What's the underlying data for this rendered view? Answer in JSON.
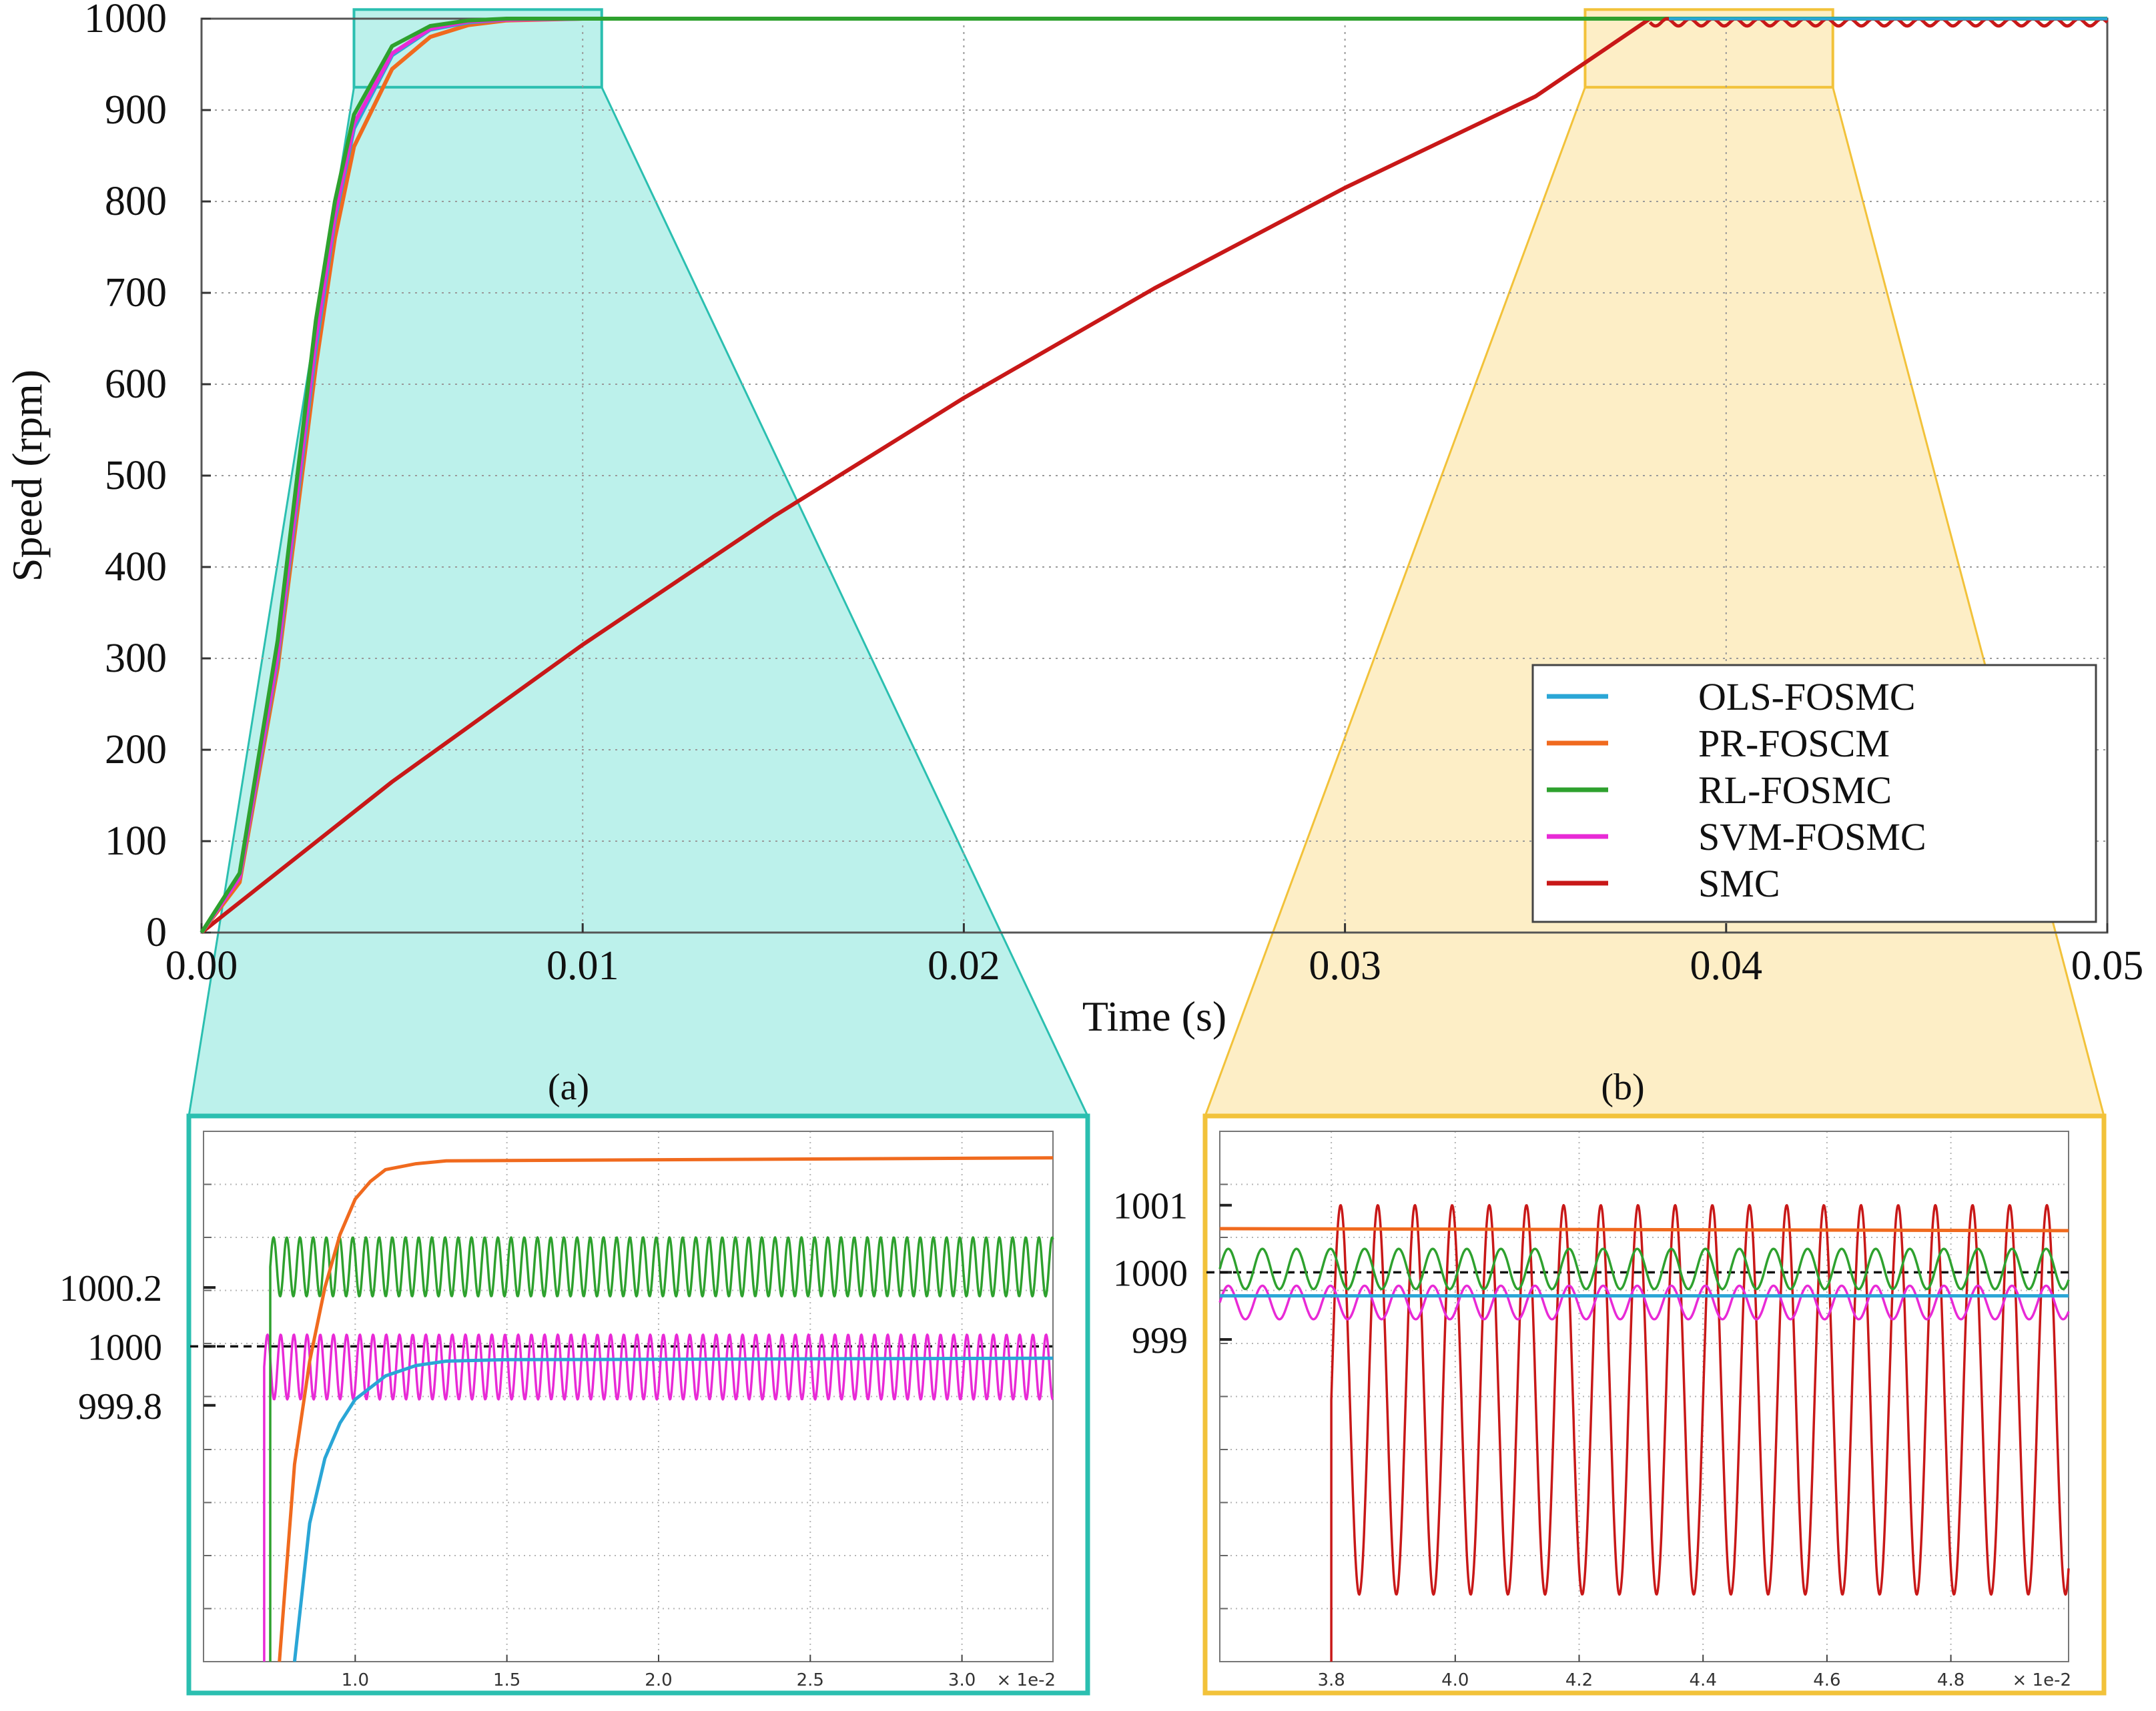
{
  "chart_data": [
    {
      "id": "main",
      "type": "line",
      "xlabel": "Time (s)",
      "ylabel": "Speed (rpm)",
      "xlim": [
        0,
        0.05
      ],
      "ylim": [
        0,
        1000
      ],
      "xticks": [
        "0.00",
        "0.01",
        "0.02",
        "0.03",
        "0.04",
        "0.05"
      ],
      "yticks": [
        "0",
        "100",
        "200",
        "300",
        "400",
        "500",
        "600",
        "700",
        "800",
        "900",
        "1000"
      ],
      "grid": true,
      "legend_position": "bottom-right",
      "reference_speed": 1000,
      "series": [
        {
          "name": "OLS-FOSMC",
          "color": "#2aa6d6",
          "x": [
            0,
            0.001,
            0.002,
            0.003,
            0.0035,
            0.004,
            0.005,
            0.006,
            0.007,
            0.008,
            0.01,
            0.05
          ],
          "y": [
            0,
            60,
            300,
            640,
            780,
            880,
            960,
            988,
            996,
            999,
            1000,
            1000
          ]
        },
        {
          "name": "PR-FOSCM",
          "color": "#f06a1e",
          "x": [
            0,
            0.001,
            0.002,
            0.003,
            0.0035,
            0.004,
            0.005,
            0.006,
            0.007,
            0.008,
            0.01,
            0.05
          ],
          "y": [
            0,
            55,
            290,
            620,
            760,
            860,
            945,
            980,
            993,
            998,
            1000,
            1000
          ]
        },
        {
          "name": "RL-FOSMC",
          "color": "#2ea12e",
          "x": [
            0,
            0.001,
            0.002,
            0.003,
            0.0035,
            0.004,
            0.005,
            0.006,
            0.007,
            0.008,
            0.01,
            0.05
          ],
          "y": [
            0,
            65,
            320,
            670,
            800,
            895,
            970,
            992,
            998,
            1000,
            1000,
            1000
          ]
        },
        {
          "name": "SVM-FOSMC",
          "color": "#e82ad6",
          "x": [
            0,
            0.001,
            0.002,
            0.003,
            0.0035,
            0.004,
            0.005,
            0.006,
            0.007,
            0.008,
            0.01,
            0.05
          ],
          "y": [
            0,
            60,
            305,
            650,
            785,
            885,
            962,
            989,
            997,
            999,
            1000,
            1000
          ]
        },
        {
          "name": "SMC",
          "color": "#c81818",
          "x": [
            0,
            0.005,
            0.01,
            0.015,
            0.02,
            0.025,
            0.03,
            0.035,
            0.038,
            0.05
          ],
          "y": [
            0,
            165,
            315,
            455,
            585,
            705,
            815,
            915,
            1000,
            1000
          ]
        }
      ],
      "zoom_regions": [
        {
          "label": "(a)",
          "xlim": [
            0.004,
            0.0105
          ],
          "ylim": [
            925,
            1010
          ],
          "color": "#2bbfb0"
        },
        {
          "label": "(b)",
          "xlim": [
            0.0363,
            0.0428
          ],
          "ylim": [
            925,
            1010
          ],
          "color": "#f2c23a"
        }
      ]
    },
    {
      "id": "inset_a",
      "type": "line",
      "label": "(a)",
      "xtick_unit": "× 1e-2",
      "xticks": [
        "1.0",
        "1.5",
        "2.0",
        "2.5",
        "3.0"
      ],
      "xlim": [
        0.5,
        3.3
      ],
      "yticks": [
        "1000.2",
        "1000",
        "999.8"
      ],
      "ylim": [
        998.93,
        1000.73
      ],
      "reference_speed": 1000,
      "grid": true,
      "series": [
        {
          "name": "PR-FOSCM",
          "color": "#f06a1e",
          "x": [
            0.75,
            0.8,
            0.85,
            0.9,
            0.95,
            1.0,
            1.05,
            1.1,
            1.2,
            1.3,
            3.3
          ],
          "y": [
            998.9,
            999.6,
            999.95,
            1000.2,
            1000.38,
            1000.5,
            1000.56,
            1000.6,
            1000.62,
            1000.63,
            1000.64
          ]
        },
        {
          "name": "OLS-FOSMC",
          "color": "#2aa6d6",
          "x": [
            0.8,
            0.85,
            0.9,
            0.95,
            1.0,
            1.1,
            1.2,
            1.3,
            1.5,
            3.3
          ],
          "y": [
            998.9,
            999.4,
            999.62,
            999.74,
            999.82,
            999.9,
            999.935,
            999.95,
            999.955,
            999.96
          ]
        },
        {
          "name": "RL-FOSMC",
          "color": "#2ea12e",
          "x_start": 0.72,
          "x_end": 3.3,
          "center": 1000.27,
          "amplitude": 0.1,
          "period": 0.0435
        },
        {
          "name": "SVM-FOSMC",
          "color": "#e82ad6",
          "x_start": 0.7,
          "x_end": 3.3,
          "center": 999.93,
          "amplitude": 0.11,
          "period": 0.0435
        }
      ]
    },
    {
      "id": "inset_b",
      "type": "line",
      "label": "(b)",
      "xtick_unit": "× 1e-2",
      "xticks": [
        "3.8",
        "4.0",
        "4.2",
        "4.4",
        "4.6",
        "4.8"
      ],
      "xlim": [
        3.62,
        4.99
      ],
      "yticks": [
        "1001",
        "1000",
        "999"
      ],
      "ylim": [
        994.2,
        1002.1
      ],
      "reference_speed": 1000,
      "grid": true,
      "series": [
        {
          "name": "PR-FOSCM",
          "color": "#f06a1e",
          "x": [
            3.62,
            4.99
          ],
          "y": [
            1000.65,
            1000.62
          ]
        },
        {
          "name": "OLS-FOSMC",
          "color": "#2aa6d6",
          "x": [
            3.62,
            4.99
          ],
          "y": [
            999.65,
            999.65
          ]
        },
        {
          "name": "RL-FOSMC",
          "color": "#2ea12e",
          "x_start": 3.62,
          "x_end": 4.99,
          "center": 1000.05,
          "amplitude": 0.3,
          "period": 0.055
        },
        {
          "name": "SVM-FOSMC",
          "color": "#e82ad6",
          "x_start": 3.62,
          "x_end": 4.99,
          "center": 999.55,
          "amplitude": 0.25,
          "period": 0.055
        },
        {
          "name": "SMC",
          "color": "#c81818",
          "x_start": 3.8,
          "x_end": 4.99,
          "center": 998.1,
          "amplitude": 2.9,
          "period": 0.06
        }
      ]
    }
  ]
}
